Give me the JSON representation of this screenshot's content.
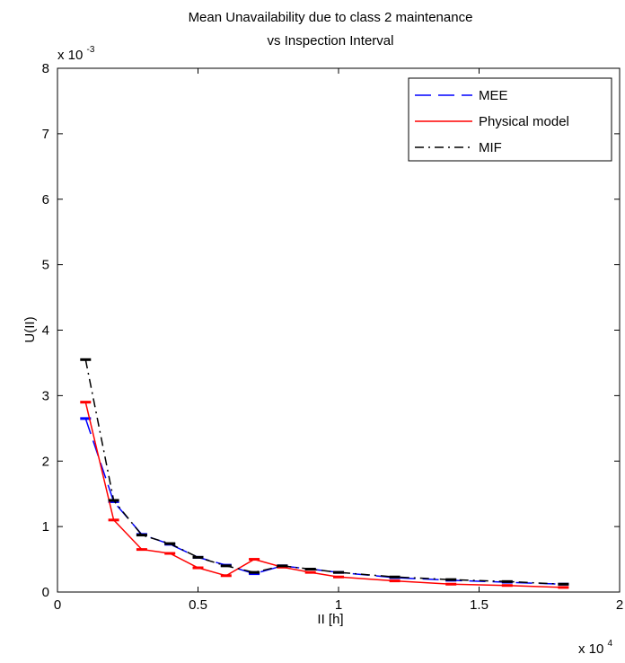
{
  "chart_data": {
    "type": "line",
    "title_lines": [
      "Mean Unavailability due to class 2 maintenance",
      "vs Inspection Interval"
    ],
    "xlabel": "II [h]",
    "ylabel": "U(II)",
    "xlim": [
      0,
      20000
    ],
    "ylim": [
      0,
      0.008
    ],
    "x_ticks": [
      0,
      5000,
      10000,
      15000,
      20000
    ],
    "x_tick_labels": [
      "0",
      "0.5",
      "1",
      "1.5",
      "2"
    ],
    "y_ticks": [
      0,
      0.001,
      0.002,
      0.003,
      0.004,
      0.005,
      0.006,
      0.007,
      0.008
    ],
    "y_tick_labels": [
      "0",
      "1",
      "2",
      "3",
      "4",
      "5",
      "6",
      "7",
      "8"
    ],
    "x_multiplier": {
      "base": "x 10",
      "exp": "4"
    },
    "y_multiplier": {
      "base": "x 10",
      "exp": "-3"
    },
    "grid": false,
    "legend_position": "top-right",
    "series": [
      {
        "name": "MEE",
        "color": "#0000ff",
        "dash": "dashed",
        "x": [
          1000,
          2000,
          3000,
          4000,
          5000,
          6000,
          7000,
          8000,
          9000,
          10000,
          12000,
          14000,
          16000,
          18000
        ],
        "y": [
          0.00265,
          0.00138,
          0.00088,
          0.00073,
          0.00053,
          0.00041,
          0.00028,
          0.0004,
          0.00035,
          0.0003,
          0.00022,
          0.00018,
          0.00015,
          0.00012
        ]
      },
      {
        "name": "Physical model",
        "color": "#ff0000",
        "dash": "solid",
        "x": [
          1000,
          2000,
          3000,
          4000,
          5000,
          6000,
          7000,
          8000,
          9000,
          10000,
          12000,
          14000,
          16000,
          18000
        ],
        "y": [
          0.0029,
          0.0011,
          0.00065,
          0.00059,
          0.00037,
          0.00025,
          0.0005,
          0.00038,
          0.0003,
          0.00023,
          0.00017,
          0.00012,
          0.0001,
          7e-05
        ]
      },
      {
        "name": "MIF",
        "color": "#000000",
        "dash": "dashdot",
        "x": [
          1000,
          2000,
          3000,
          4000,
          5000,
          6000,
          7000,
          8000,
          9000,
          10000,
          12000,
          14000,
          16000,
          18000
        ],
        "y": [
          0.00355,
          0.0014,
          0.00087,
          0.00074,
          0.00053,
          0.0004,
          0.0003,
          0.0004,
          0.00035,
          0.0003,
          0.00023,
          0.00019,
          0.00016,
          0.00012
        ]
      }
    ]
  }
}
